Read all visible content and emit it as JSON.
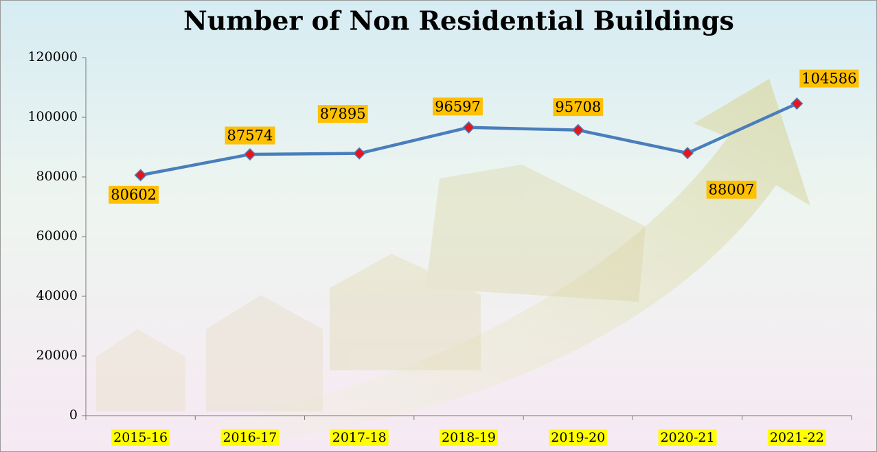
{
  "chart_data": {
    "type": "line",
    "title": "Number of Non Residential Buildings",
    "categories": [
      "2015-16",
      "2016-17",
      "2017-18",
      "2018-19",
      "2019-20",
      "2020-21",
      "2021-22"
    ],
    "series": [
      {
        "name": "Number of Non Residential Buildings",
        "color": "#4a7ebb",
        "marker_color": "#e8141b",
        "values": [
          80602,
          87574,
          87895,
          96597,
          95708,
          88007,
          104586
        ]
      }
    ],
    "ylim": [
      0,
      120000
    ],
    "yticks": [
      0,
      20000,
      40000,
      60000,
      80000,
      100000,
      120000
    ],
    "grid": false,
    "label_color": "#ffc000",
    "category_highlight": "#ffff00"
  }
}
